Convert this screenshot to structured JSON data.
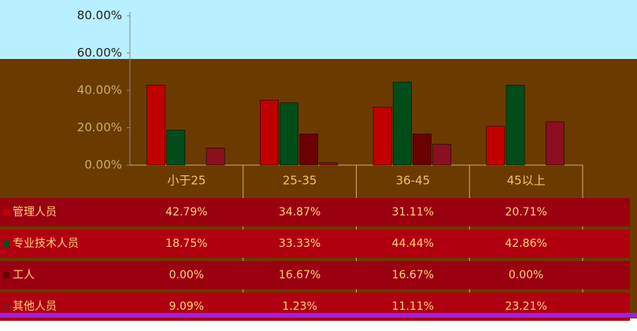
{
  "chart_data": {
    "type": "bar",
    "categories": [
      "小于25",
      "25-35",
      "36-45",
      "45以上"
    ],
    "ylim": [
      0,
      80
    ],
    "yticks": [
      {
        "value": 0,
        "label": "0.00%"
      },
      {
        "value": 20,
        "label": "20.00%"
      },
      {
        "value": 40,
        "label": "40.00%"
      },
      {
        "value": 60,
        "label": "60.00%"
      },
      {
        "value": 80,
        "label": "80.00%"
      }
    ],
    "series": [
      {
        "name": "管理人员",
        "color": "#c00000",
        "values": [
          42.79,
          34.87,
          31.11,
          20.71
        ],
        "value_labels": [
          "42.79%",
          "34.87%",
          "31.11%",
          "20.71%"
        ]
      },
      {
        "name": "专业技术人员",
        "color": "#004d1a",
        "values": [
          18.75,
          33.33,
          44.44,
          42.86
        ],
        "value_labels": [
          "18.75%",
          "33.33%",
          "44.44%",
          "42.86%"
        ]
      },
      {
        "name": "工人",
        "color": "#6b0000",
        "values": [
          0,
          16.67,
          16.67,
          0
        ],
        "value_labels": [
          "0.00%",
          "16.67%",
          "16.67%",
          "0.00%"
        ]
      },
      {
        "name": "其他人员",
        "color": "#8a1020",
        "values": [
          9.09,
          1.23,
          11.11,
          23.21
        ],
        "value_labels": [
          "9.09%",
          "1.23%",
          "11.11%",
          "23.21%"
        ]
      }
    ]
  }
}
